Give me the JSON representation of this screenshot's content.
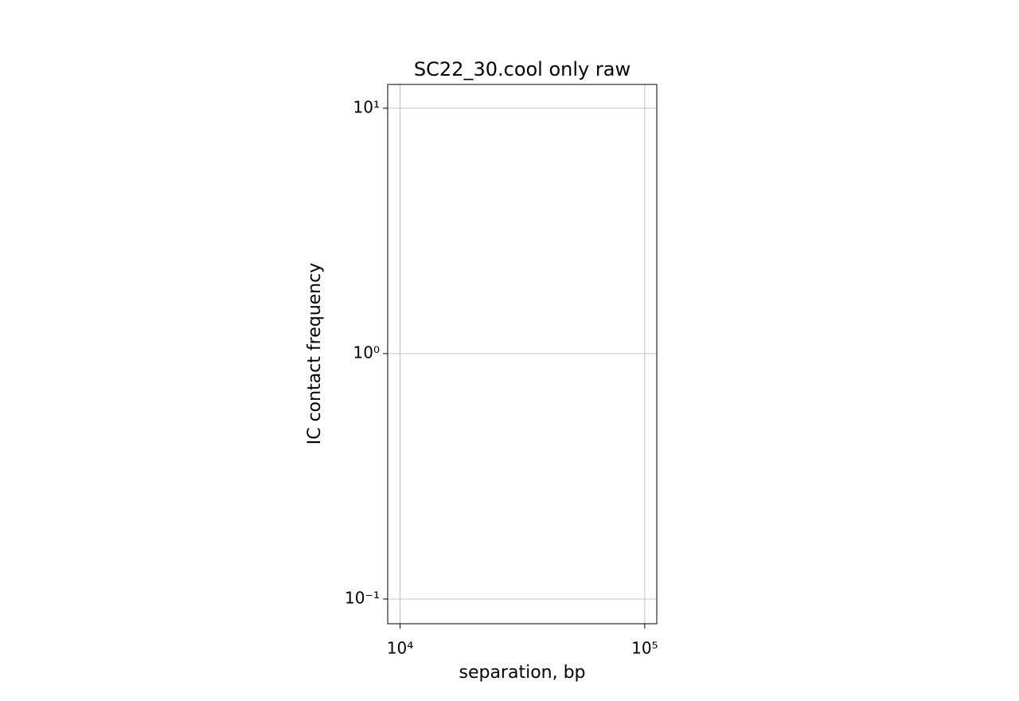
{
  "chart_data": {
    "type": "line",
    "title": "SC22_30.cool only raw",
    "xlabel": "separation, bp",
    "ylabel": "IC contact frequency",
    "xscale": "log",
    "yscale": "log",
    "grid": true,
    "xlim": [
      8900,
      112000
    ],
    "ylim": [
      0.0793,
      12.5
    ],
    "xticks": [
      {
        "value": 10000,
        "label": "10⁴"
      },
      {
        "value": 100000,
        "label": "10⁵"
      }
    ],
    "yticks": [
      {
        "value": 0.1,
        "label": "10⁻¹"
      },
      {
        "value": 1,
        "label": "10⁰"
      },
      {
        "value": 10,
        "label": "10¹"
      }
    ],
    "series": []
  }
}
